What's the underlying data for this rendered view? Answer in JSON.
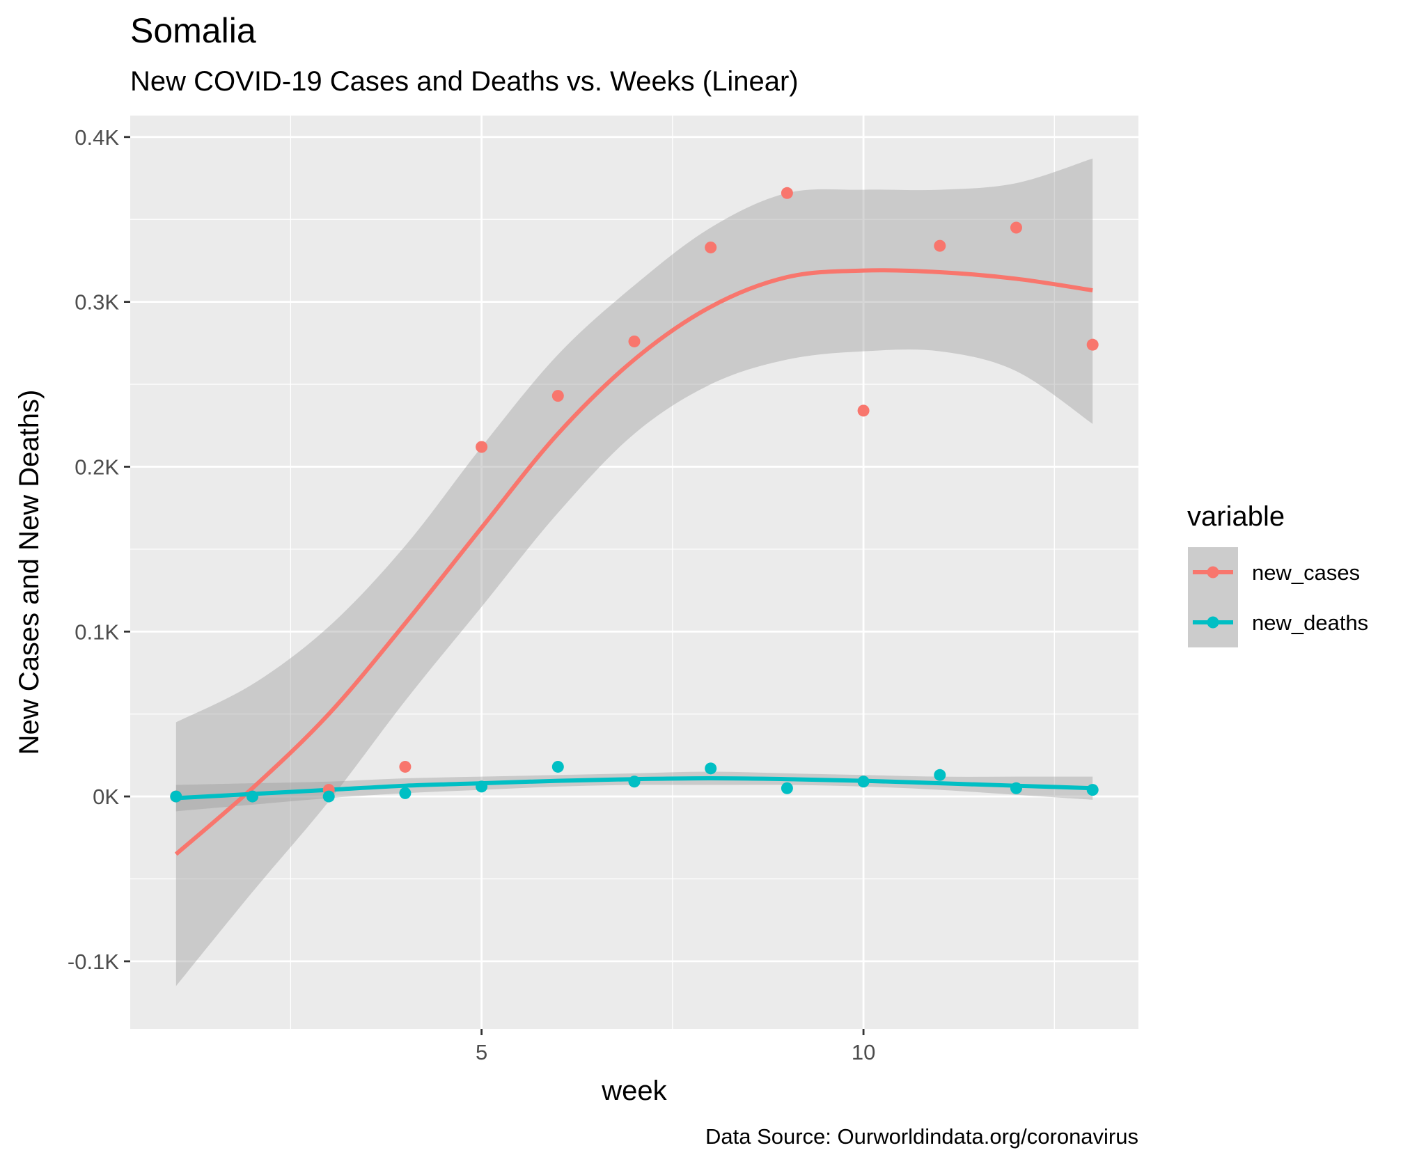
{
  "chart_data": {
    "type": "scatter",
    "title": "Somalia",
    "subtitle": "New COVID-19 Cases and Deaths vs. Weeks (Linear)",
    "xlabel": "week",
    "ylabel": "New Cases and New Deaths)",
    "caption": "Data Source: Ourworldindata.org/coronavirus",
    "xlim": [
      0.4,
      13.6
    ],
    "ylim": [
      -0.141,
      0.413
    ],
    "x_ticks": [
      5,
      10
    ],
    "x_tick_labels": [
      "5",
      "10"
    ],
    "y_ticks": [
      -0.1,
      0.0,
      0.1,
      0.2,
      0.3,
      0.4
    ],
    "y_tick_labels": [
      "-0.1K",
      "0K",
      "0.1K",
      "0.2K",
      "0.3K",
      "0.4K"
    ],
    "grid": true,
    "legend": {
      "title": "variable",
      "position": "right"
    },
    "series": [
      {
        "name": "new_cases",
        "color": "#F8766D",
        "x": [
          1,
          2,
          3,
          4,
          5,
          6,
          7,
          8,
          9,
          10,
          11,
          12,
          13
        ],
        "y": [
          0.0,
          0.0,
          0.004,
          0.018,
          0.212,
          0.243,
          0.276,
          0.333,
          0.366,
          0.234,
          0.334,
          0.345,
          0.274
        ],
        "smooth": {
          "x": [
            1,
            2,
            3,
            4,
            5,
            6,
            7,
            8,
            9,
            10,
            11,
            12,
            13
          ],
          "y": [
            -0.035,
            0.005,
            0.05,
            0.105,
            0.163,
            0.22,
            0.265,
            0.297,
            0.315,
            0.319,
            0.318,
            0.314,
            0.307
          ],
          "lower": [
            -0.115,
            -0.058,
            -0.003,
            0.058,
            0.115,
            0.172,
            0.22,
            0.25,
            0.265,
            0.27,
            0.27,
            0.258,
            0.226
          ],
          "upper": [
            0.045,
            0.068,
            0.103,
            0.152,
            0.212,
            0.268,
            0.31,
            0.345,
            0.366,
            0.368,
            0.368,
            0.372,
            0.387
          ]
        }
      },
      {
        "name": "new_deaths",
        "color": "#00BFC4",
        "x": [
          1,
          2,
          3,
          4,
          5,
          6,
          7,
          8,
          9,
          10,
          11,
          12,
          13
        ],
        "y": [
          0.0,
          0.0,
          0.0,
          0.002,
          0.006,
          0.018,
          0.009,
          0.017,
          0.005,
          0.009,
          0.013,
          0.005,
          0.004
        ],
        "smooth": {
          "x": [
            1,
            2,
            3,
            4,
            5,
            6,
            7,
            8,
            9,
            10,
            11,
            12,
            13
          ],
          "y": [
            -0.001,
            0.0015,
            0.004,
            0.0065,
            0.008,
            0.0095,
            0.0105,
            0.011,
            0.0105,
            0.0095,
            0.008,
            0.0065,
            0.005
          ],
          "lower": [
            -0.009,
            -0.005,
            -0.001,
            0.002,
            0.004,
            0.006,
            0.007,
            0.007,
            0.007,
            0.006,
            0.004,
            0.001,
            -0.002
          ],
          "upper": [
            0.007,
            0.008,
            0.009,
            0.011,
            0.012,
            0.013,
            0.014,
            0.015,
            0.014,
            0.013,
            0.012,
            0.012,
            0.012
          ]
        }
      }
    ]
  }
}
